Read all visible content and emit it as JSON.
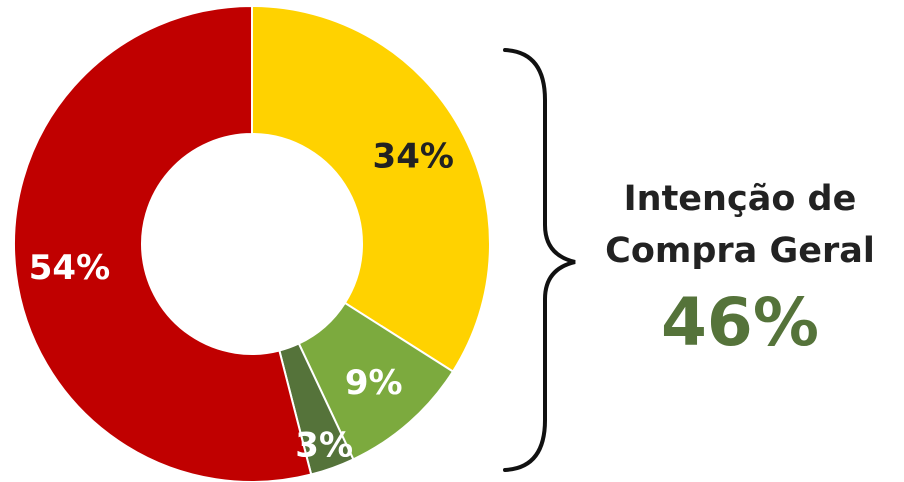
{
  "chart_data": {
    "type": "pie",
    "donut": true,
    "start_angle_deg": 0,
    "direction": "clockwise",
    "slices": [
      {
        "value": 34,
        "label": "34%",
        "color": "#FFD200",
        "label_color": "#222222"
      },
      {
        "value": 9,
        "label": "9%",
        "color": "#7CAA3E",
        "label_color": "#ffffff"
      },
      {
        "value": 3,
        "label": "3%",
        "color": "#55733A",
        "label_color": "#ffffff"
      },
      {
        "value": 54,
        "label": "54%",
        "color": "#C00000",
        "label_color": "#ffffff"
      }
    ],
    "legend": "none"
  },
  "summary": {
    "line1": "Intenção de",
    "line2": "Compra Geral",
    "value": "46%",
    "value_color": "#55733A"
  }
}
